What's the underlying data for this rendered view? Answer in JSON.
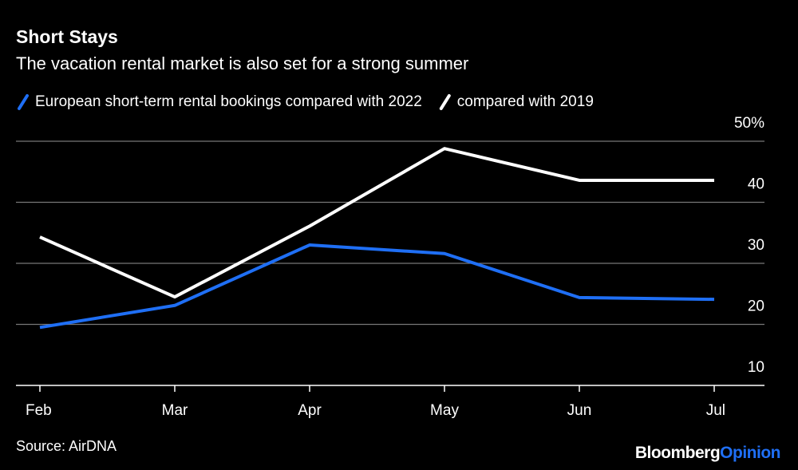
{
  "chart_data": {
    "type": "line",
    "title": "Short Stays",
    "subtitle": "The vacation rental market is also set for a strong summer",
    "categories": [
      "Feb",
      "Mar",
      "Apr",
      "May",
      "Jun",
      "Jul"
    ],
    "series": [
      {
        "name": "European short-term rental bookings compared with 2022",
        "color": "#1f6ff5",
        "values": [
          19.5,
          23.1,
          33.0,
          31.6,
          24.4,
          24.1
        ]
      },
      {
        "name": "compared with 2019",
        "color": "#ffffff",
        "values": [
          34.3,
          24.5,
          36.1,
          48.8,
          43.6,
          43.6
        ]
      }
    ],
    "ylim": [
      10,
      50
    ],
    "yticks": [
      10,
      20,
      30,
      40,
      {
        "value": 50,
        "label": "50%"
      }
    ],
    "grid": true,
    "source": "Source: AirDNA",
    "logo": [
      "Bloomberg",
      "Opinion"
    ]
  }
}
